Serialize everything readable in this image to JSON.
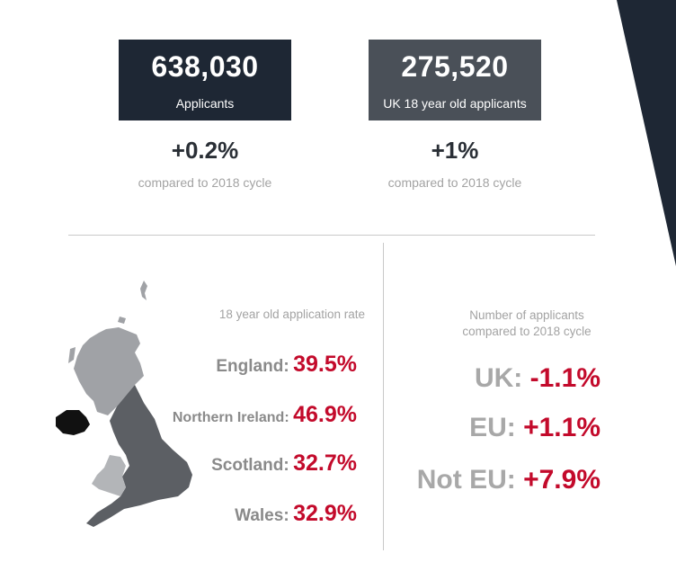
{
  "stats": {
    "applicants": {
      "number": "638,030",
      "label": "Applicants",
      "change": "+0.2%",
      "caption": "compared to 2018 cycle"
    },
    "uk18": {
      "number": "275,520",
      "label": "UK 18 year old applicants",
      "change": "+1%",
      "caption": "compared to 2018 cycle"
    }
  },
  "rates": {
    "title": "18 year old application rate",
    "items": [
      {
        "region": "England:",
        "value": "39.5%"
      },
      {
        "region": "Northern Ireland:",
        "value": "46.9%"
      },
      {
        "region": "Scotland:",
        "value": "32.7%"
      },
      {
        "region": "Wales:",
        "value": "32.9%"
      }
    ]
  },
  "applicants_change": {
    "title_line1": "Number of applicants",
    "title_line2": "compared to 2018 cycle",
    "items": [
      {
        "region": "UK:",
        "value": "-1.1%"
      },
      {
        "region": "EU:",
        "value": "+1.1%"
      },
      {
        "region": "Not EU:",
        "value": "+7.9%"
      }
    ]
  },
  "colors": {
    "navy": "#1e2734",
    "slate": "#4a5058",
    "accent_red": "#c30a2b",
    "england": "#5c5f64",
    "scotland": "#a0a2a6",
    "wales": "#b3b5b8",
    "northern_ireland": "#111111"
  }
}
